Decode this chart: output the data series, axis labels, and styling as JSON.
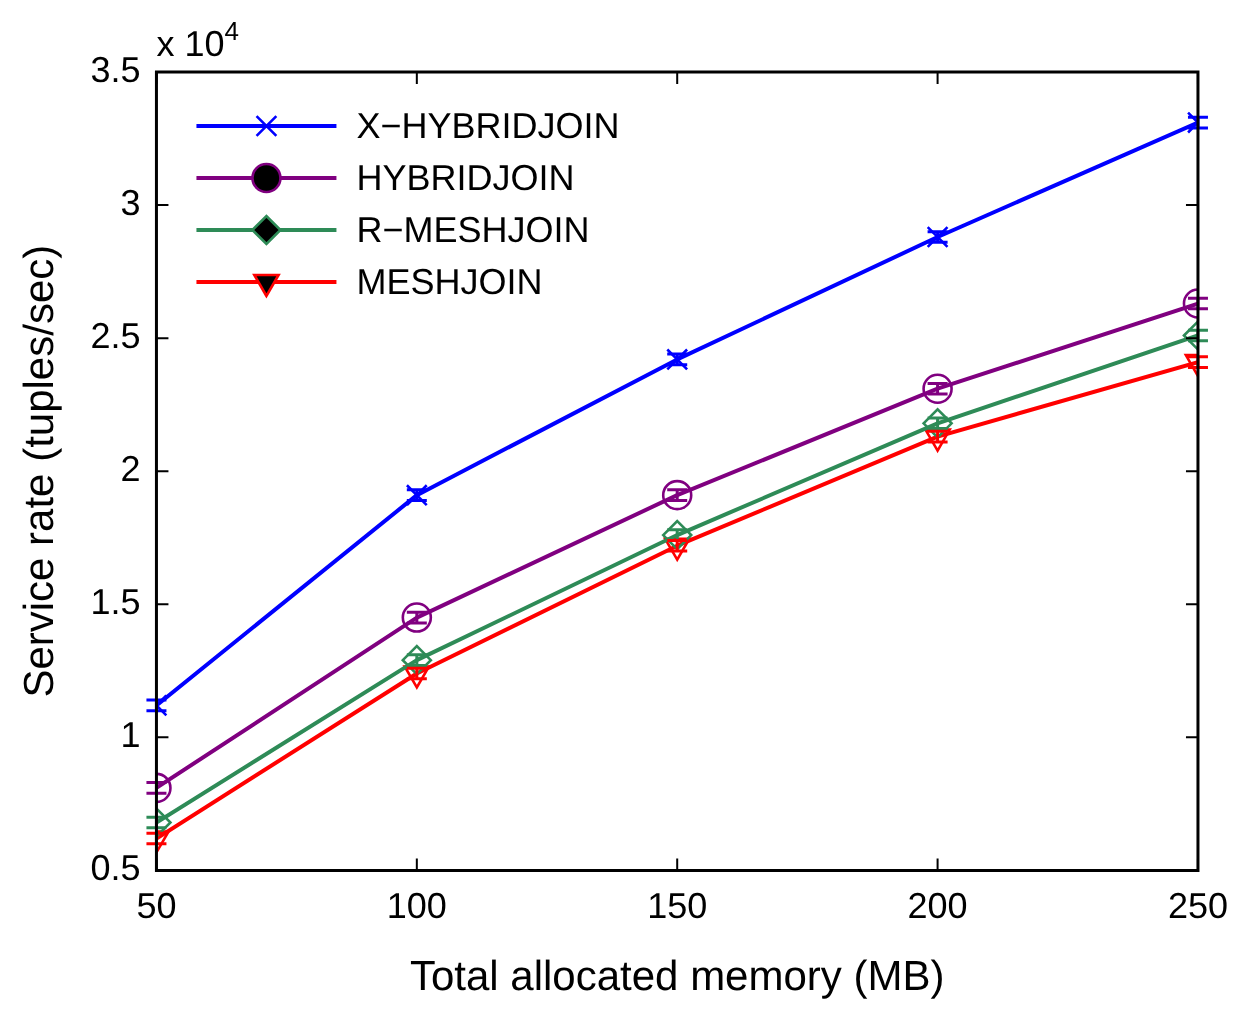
{
  "chart_data": {
    "type": "line",
    "xlabel": "Total allocated memory (MB)",
    "ylabel": "Service rate (tuples/sec)",
    "annotations": [
      "x 10$^{4}$"
    ],
    "x": [
      50,
      100,
      150,
      200,
      250
    ],
    "xlim": [
      50,
      250
    ],
    "xticks": [
      50,
      100,
      150,
      200,
      250
    ],
    "ylim": [
      0.5,
      3.5
    ],
    "yticks": [
      0.5,
      1,
      1.5,
      2,
      2.5,
      3,
      3.5
    ],
    "grid": false,
    "legend": "top left",
    "line_style": "solid",
    "series": [
      {
        "name": "X−HYBRIDJOIN",
        "color": "#0000ff",
        "marker": "cross",
        "values": [
          1.12,
          1.91,
          2.42,
          2.88,
          3.31
        ],
        "errors": [
          0.02,
          0.02,
          0.02,
          0.02,
          0.02
        ]
      },
      {
        "name": "HYBRIDJOIN",
        "color": "#800080",
        "marker": "circle",
        "values": [
          0.81,
          1.45,
          1.91,
          2.31,
          2.63
        ],
        "errors": [
          0.02,
          0.02,
          0.02,
          0.02,
          0.02
        ]
      },
      {
        "name": "R−MESHJOIN",
        "color": "#2e8b57",
        "marker": "diamond",
        "values": [
          0.68,
          1.29,
          1.76,
          2.18,
          2.51
        ],
        "errors": [
          0.02,
          0.02,
          0.02,
          0.02,
          0.02
        ]
      },
      {
        "name": "MESHJOIN",
        "color": "#ff0000",
        "marker": "triangle",
        "values": [
          0.62,
          1.24,
          1.72,
          2.13,
          2.41
        ],
        "errors": [
          0.02,
          0.02,
          0.02,
          0.02,
          0.02
        ]
      }
    ]
  }
}
